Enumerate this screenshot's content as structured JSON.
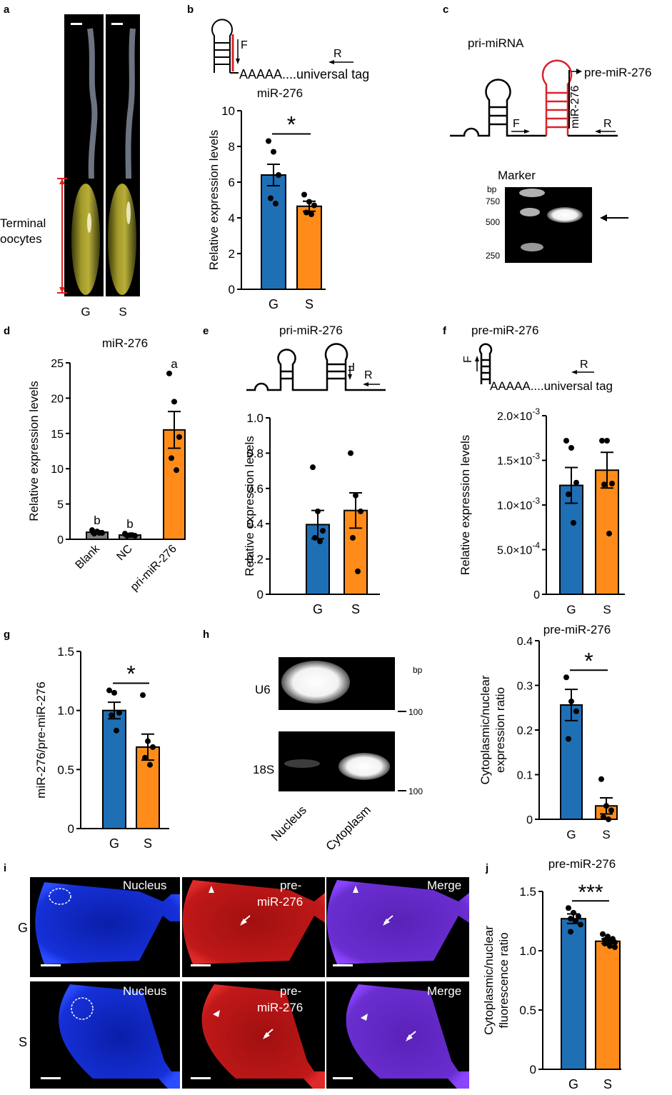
{
  "colors": {
    "blue": "#1f6fb5",
    "orange": "#ff8c1a",
    "gray": "#808080",
    "red": "#d9232a"
  },
  "panel_labels": [
    "a",
    "b",
    "c",
    "d",
    "e",
    "f",
    "g",
    "h",
    "i",
    "j"
  ],
  "panel_a": {
    "terminal_label_line1": "Terminal",
    "terminal_label_line2": "oocytes",
    "group_labels": [
      "G",
      "S"
    ]
  },
  "panel_b_schematic": {
    "F": "F",
    "R": "R",
    "tag": "AAAAA....universal tag"
  },
  "panel_c": {
    "title": "pri-miRNA",
    "pre_label": "pre-miR-276",
    "mir_label": "miR-276",
    "F": "F",
    "R": "R",
    "marker": "Marker",
    "bp": "bp",
    "ladder": [
      "750",
      "500",
      "250"
    ]
  },
  "panel_e_schematic": {
    "F": "F",
    "R": "R"
  },
  "panel_f_schematic": {
    "F": "F",
    "R": "R",
    "tag": "AAAAA....universal tag"
  },
  "panel_h": {
    "rows": [
      "U6",
      "18S"
    ],
    "bp": "bp",
    "size": "100",
    "lanes": [
      "Nucleus",
      "Cytoplasm"
    ]
  },
  "panel_i": {
    "rows": [
      "G",
      "S"
    ],
    "cols": [
      "Nucleus",
      "pre-",
      "miR-276",
      "Merge"
    ]
  },
  "chart_data": [
    {
      "id": "b",
      "type": "bar",
      "title": "miR-276",
      "xlabel": "",
      "ylabel": "Relative expression levels",
      "categories": [
        "G",
        "S"
      ],
      "values": [
        6.4,
        4.65
      ],
      "errors": [
        0.6,
        0.28
      ],
      "points": [
        [
          8.3,
          7.7,
          6.4,
          5.1,
          4.8
        ],
        [
          5.3,
          4.9,
          4.7,
          4.3,
          4.2
        ]
      ],
      "ylim": [
        0,
        10
      ],
      "yticks": [
        0,
        2,
        4,
        6,
        8,
        10
      ],
      "ytick_labels": [
        "0",
        "2",
        "4",
        "6",
        "8",
        "10"
      ],
      "significance": "*"
    },
    {
      "id": "d",
      "type": "bar",
      "title": "miR-276",
      "xlabel": "",
      "ylabel": "Relative expression levels",
      "categories": [
        "Blank",
        "NC",
        "pri-miR-276"
      ],
      "values": [
        1.0,
        0.6,
        15.5
      ],
      "errors": [
        0.2,
        0.15,
        2.6
      ],
      "points": [
        [
          1.3,
          1.1,
          0.9,
          0.8,
          0.9
        ],
        [
          0.8,
          0.6,
          0.5,
          0.5,
          0.6
        ],
        [
          23.5,
          19.5,
          14.5,
          11.5,
          9.8
        ]
      ],
      "ylim": [
        0,
        25
      ],
      "yticks": [
        0,
        5,
        10,
        15,
        20,
        25
      ],
      "ytick_labels": [
        "0",
        "5",
        "10",
        "15",
        "20",
        "25"
      ],
      "letters": [
        "b",
        "b",
        "a"
      ]
    },
    {
      "id": "e",
      "type": "bar",
      "title": "pri-miR-276",
      "xlabel": "",
      "ylabel": "Relative expression levels",
      "categories": [
        "G",
        "S"
      ],
      "values": [
        0.395,
        0.475
      ],
      "errors": [
        0.08,
        0.1
      ],
      "points": [
        [
          0.72,
          0.47,
          0.36,
          0.32,
          0.3
        ],
        [
          0.8,
          0.56,
          0.47,
          0.32,
          0.13
        ]
      ],
      "ylim": [
        0,
        1.0
      ],
      "yticks": [
        0,
        0.2,
        0.4,
        0.6,
        0.8,
        1.0
      ],
      "ytick_labels": [
        "0",
        "0.2",
        "0.4",
        "0.6",
        "0.8",
        "1.0"
      ]
    },
    {
      "id": "f",
      "type": "bar",
      "title": "pre-miR-276",
      "xlabel": "",
      "ylabel": "Relative expression levels",
      "categories": [
        "G",
        "S"
      ],
      "values": [
        0.00122,
        0.00139
      ],
      "errors": [
        0.0002,
        0.0002
      ],
      "points": [
        [
          0.00172,
          0.00164,
          0.00125,
          0.00112,
          0.0008
        ],
        [
          0.00172,
          0.00172,
          0.00124,
          0.00123,
          0.00068
        ]
      ],
      "ylim": [
        0,
        0.002
      ],
      "yticks": [
        0,
        0.0005,
        0.001,
        0.0015,
        0.002
      ],
      "ytick_labels": [
        "0",
        "5.0×10",
        "1.0×10",
        "1.5×10",
        "2.0×10"
      ],
      "ytick_exps": [
        "",
        "-4",
        "-3",
        "-3",
        "-3"
      ]
    },
    {
      "id": "g",
      "type": "bar",
      "title": "",
      "xlabel": "",
      "ylabel": "miR-276/pre-miR-276",
      "categories": [
        "G",
        "S"
      ],
      "values": [
        1.0,
        0.69
      ],
      "errors": [
        0.07,
        0.11
      ],
      "points": [
        [
          1.17,
          1.15,
          0.98,
          0.96,
          0.83
        ],
        [
          1.13,
          0.74,
          0.69,
          0.6,
          0.54
        ]
      ],
      "ylim": [
        0,
        1.5
      ],
      "yticks": [
        0,
        0.5,
        1.0,
        1.5
      ],
      "ytick_labels": [
        "0",
        "0.5",
        "1.0",
        "1.5"
      ],
      "significance": "*"
    },
    {
      "id": "h",
      "type": "bar",
      "title": "pre-miR-276",
      "xlabel": "",
      "ylabel": "Cytoplasmic/nuclear expression ratio",
      "ylabel_lines": [
        "Cytoplasmic/nuclear",
        "expression ratio"
      ],
      "categories": [
        "G",
        "S"
      ],
      "values": [
        0.256,
        0.03
      ],
      "errors": [
        0.035,
        0.018
      ],
      "points": [
        [
          0.318,
          0.264,
          0.242,
          0.18
        ],
        [
          0.09,
          0.03,
          0.02,
          0.005,
          0.0
        ]
      ],
      "ylim": [
        0,
        0.4
      ],
      "yticks": [
        0,
        0.1,
        0.2,
        0.3,
        0.4
      ],
      "ytick_labels": [
        "0",
        "0.1",
        "0.2",
        "0.3",
        "0.4"
      ],
      "significance": "*"
    },
    {
      "id": "j",
      "type": "bar",
      "title": "pre-miR-276",
      "xlabel": "",
      "ylabel": "Cytoplasmic/nuclear fluorescence ratio",
      "ylabel_lines": [
        "Cytoplasmic/nuclear",
        "fluorescence ratio"
      ],
      "categories": [
        "G",
        "S"
      ],
      "values": [
        1.27,
        1.08
      ],
      "errors": [
        0.04,
        0.02
      ],
      "points": [
        [
          1.36,
          1.32,
          1.29,
          1.27,
          1.25,
          1.22,
          1.16
        ],
        [
          1.14,
          1.12,
          1.1,
          1.09,
          1.08,
          1.07,
          1.06,
          1.04,
          1.03
        ]
      ],
      "ylim": [
        0,
        1.5
      ],
      "yticks": [
        0,
        0.5,
        1.0,
        1.5
      ],
      "ytick_labels": [
        "0",
        "0.5",
        "1.0",
        "1.5"
      ],
      "significance": "***"
    }
  ]
}
